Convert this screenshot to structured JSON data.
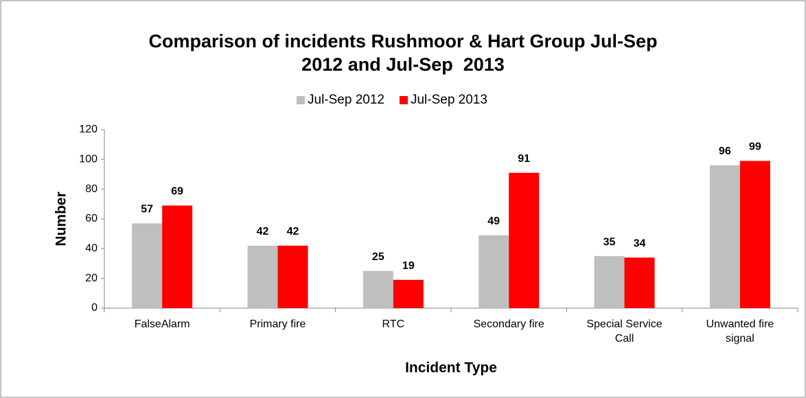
{
  "chart_data": {
    "type": "bar",
    "title": "Comparison of incidents Rushmoor & Hart Group Jul-Sep 2012 and Jul-Sep  2013",
    "x_label": "Incident Type",
    "y_label": "Number",
    "categories": [
      "FalseAlarm",
      "Primary fire",
      "RTC",
      "Secondary fire",
      "Special Service Call",
      "Unwanted fire signal"
    ],
    "series": [
      {
        "name": "Jul-Sep 2012",
        "color": "#bfbfbf",
        "values": [
          57,
          42,
          25,
          49,
          35,
          96
        ]
      },
      {
        "name": "Jul-Sep 2013",
        "color": "#ff0000",
        "values": [
          69,
          42,
          19,
          91,
          34,
          99
        ]
      }
    ],
    "ylim": [
      0,
      120
    ],
    "yticks": [
      0,
      20,
      40,
      60,
      80,
      100,
      120
    ],
    "grid": false,
    "legend": "top"
  }
}
